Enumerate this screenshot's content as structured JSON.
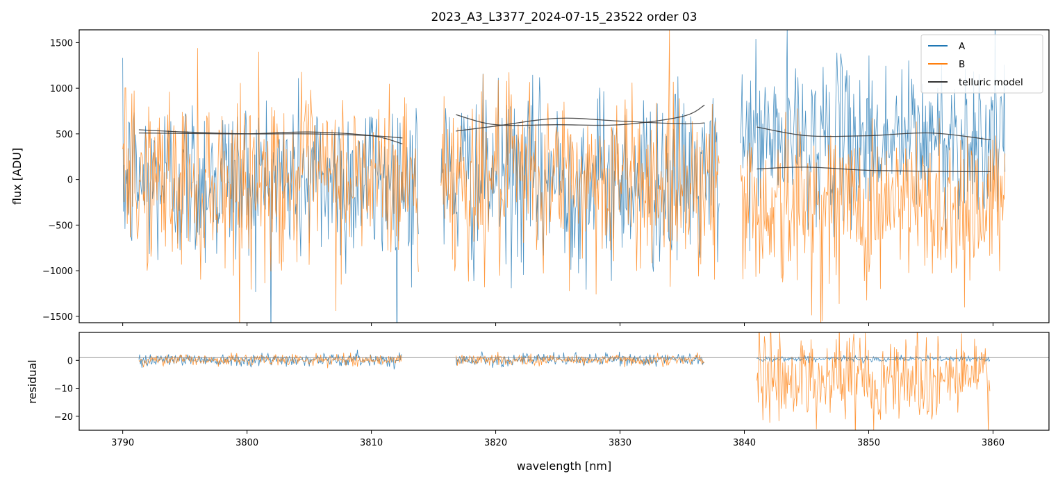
{
  "colors": {
    "A": "#1f77b4",
    "B": "#ff7f0e",
    "model": "#333333",
    "zeroline": "#808080"
  },
  "chart_data": [
    {
      "type": "line",
      "panel": "top",
      "title": "2023_A3_L3377_2024-07-15_23522  order 03",
      "xlabel": "",
      "ylabel": "flux [ADU]",
      "xlim": [
        3786.5,
        3864.5
      ],
      "ylim": [
        -1570,
        1640
      ],
      "xticks": [
        3790,
        3800,
        3810,
        3820,
        3830,
        3840,
        3850,
        3860
      ],
      "yticks": [
        1500,
        1000,
        500,
        0,
        -500,
        -1000,
        -1500
      ],
      "ytick_labels": [
        "1500",
        "1000",
        "500",
        "0",
        "−500",
        "−1000",
        "−1500"
      ],
      "legend": {
        "position": "top-right",
        "entries": [
          "A",
          "B",
          "telluric model"
        ]
      },
      "series": [
        {
          "name": "A",
          "style": "noisy",
          "segments": [
            {
              "x": [
                3790.0,
                3813.8
              ],
              "center": 0,
              "sigma": 480
            },
            {
              "x": [
                3815.6,
                3838.0
              ],
              "center": 0,
              "sigma": 480
            },
            {
              "x": [
                3839.7,
                3861.0
              ],
              "center": 450,
              "sigma": 430
            }
          ]
        },
        {
          "name": "B",
          "style": "noisy",
          "segments": [
            {
              "x": [
                3790.0,
                3813.8
              ],
              "center": 0,
              "sigma": 480
            },
            {
              "x": [
                3815.6,
                3838.0
              ],
              "center": 0,
              "sigma": 480
            },
            {
              "x": [
                3839.7,
                3861.0
              ],
              "center": -280,
              "sigma": 460
            }
          ]
        },
        {
          "name": "telluric model",
          "style": "line",
          "curves": [
            {
              "x": [
                3791.3,
                3795,
                3800,
                3805,
                3810,
                3812.5
              ],
              "y": [
                545,
                520,
                500,
                500,
                480,
                455
              ]
            },
            {
              "x": [
                3791.3,
                3795,
                3800,
                3805,
                3810,
                3812.5
              ],
              "y": [
                510,
                505,
                500,
                520,
                480,
                390
              ]
            },
            {
              "x": [
                3816.8,
                3820,
                3825,
                3830,
                3835,
                3836.8
              ],
              "y": [
                710,
                600,
                600,
                600,
                690,
                815
              ]
            },
            {
              "x": [
                3816.8,
                3820,
                3825,
                3830,
                3835,
                3836.8
              ],
              "y": [
                530,
                585,
                670,
                640,
                610,
                620
              ]
            },
            {
              "x": [
                3841.0,
                3845,
                3850,
                3855,
                3859.8
              ],
              "y": [
                575,
                480,
                480,
                510,
                435
              ]
            },
            {
              "x": [
                3841.0,
                3845,
                3850,
                3855,
                3859.8
              ],
              "y": [
                115,
                135,
                100,
                90,
                85
              ]
            }
          ]
        }
      ]
    },
    {
      "type": "line",
      "panel": "bottom",
      "xlabel": "wavelength [nm]",
      "ylabel": "residual",
      "xlim": [
        3786.5,
        3864.5
      ],
      "ylim": [
        -25,
        10
      ],
      "xticks": [
        3790,
        3800,
        3810,
        3820,
        3830,
        3840,
        3850,
        3860
      ],
      "xtick_labels": [
        "3790",
        "3800",
        "3810",
        "3820",
        "3830",
        "3840",
        "3850",
        "3860"
      ],
      "yticks": [
        0,
        -10,
        -20
      ],
      "ytick_labels": [
        "0",
        "−10",
        "−20"
      ],
      "reference_line_y": 1,
      "series": [
        {
          "name": "A",
          "style": "noisy",
          "segments": [
            {
              "x": [
                3791.3,
                3812.5
              ],
              "center": 0.3,
              "sigma": 1.1
            },
            {
              "x": [
                3816.8,
                3836.8
              ],
              "center": 0.3,
              "sigma": 1.1
            },
            {
              "x": [
                3841.0,
                3859.8
              ],
              "center": 0.5,
              "sigma": 0.5
            }
          ]
        },
        {
          "name": "B",
          "style": "noisy",
          "segments": [
            {
              "x": [
                3791.3,
                3812.5
              ],
              "center": 0.2,
              "sigma": 1.0
            },
            {
              "x": [
                3816.8,
                3836.8
              ],
              "center": 0.2,
              "sigma": 1.0
            },
            {
              "x": [
                3841.0,
                3859.8
              ],
              "center": -6,
              "sigma": 8
            }
          ]
        }
      ]
    }
  ]
}
